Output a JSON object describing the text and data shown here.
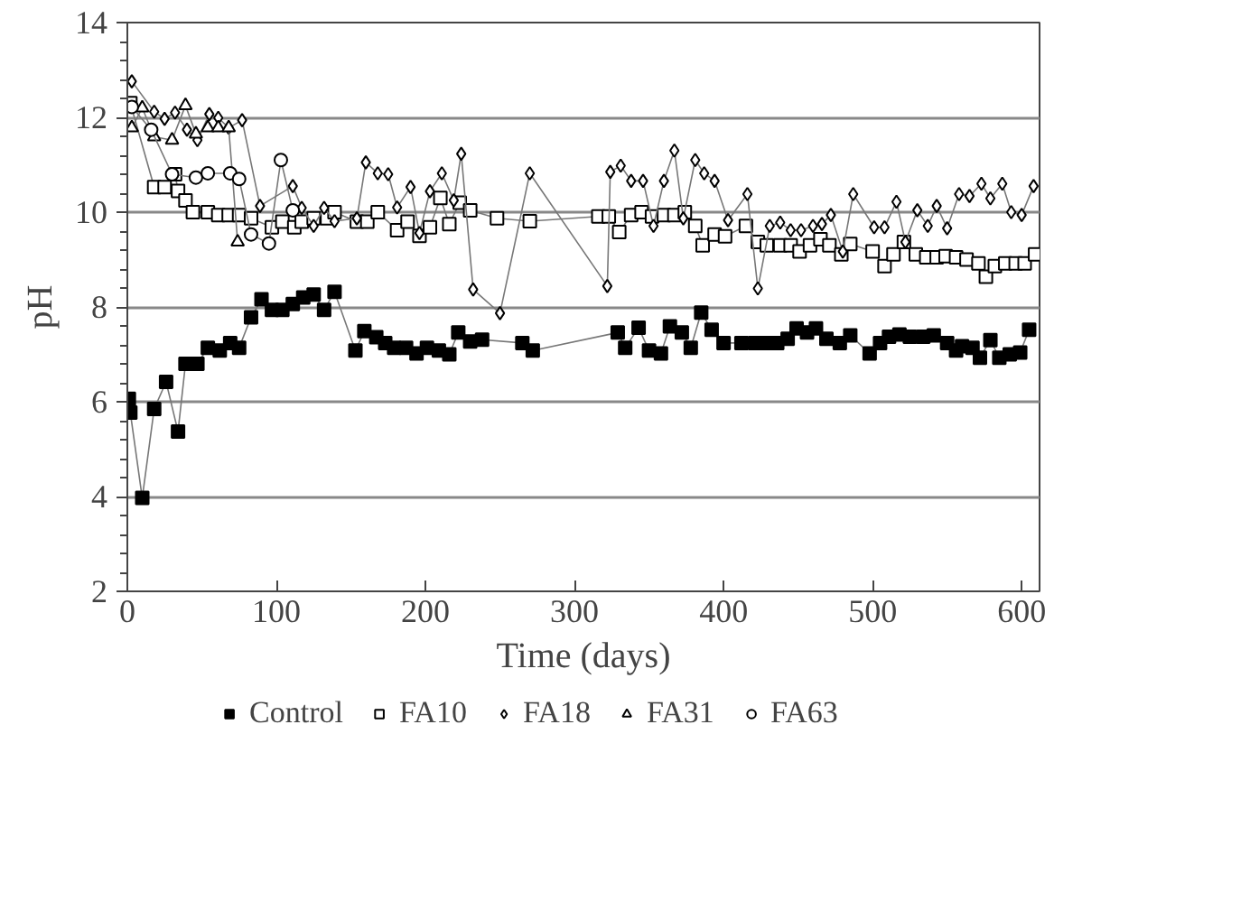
{
  "chart_data": {
    "type": "line",
    "xlabel": "Time (days)",
    "ylabel": "pH",
    "xlim": [
      0,
      612
    ],
    "xticks": [
      0,
      100,
      200,
      300,
      400,
      500,
      600
    ],
    "ylim": [
      2,
      14
    ],
    "yticks": [
      2,
      4,
      6,
      8,
      10,
      12,
      14
    ],
    "grid": "y",
    "legend": "bottom",
    "line_style": "solid",
    "series": [
      {
        "name": "Control",
        "color": "#000000",
        "marker": "square",
        "x": [
          1,
          2,
          10,
          18,
          26,
          34,
          39,
          47,
          54,
          62,
          69,
          75,
          83,
          90,
          97,
          104,
          111,
          118,
          125,
          132,
          139,
          153,
          159,
          167,
          173,
          179,
          187,
          194,
          201,
          209,
          216,
          222,
          230,
          238,
          265,
          272,
          329,
          334,
          343,
          350,
          358,
          364,
          372,
          378,
          385,
          392,
          400,
          412,
          421,
          429,
          436,
          443,
          449,
          456,
          462,
          469,
          478,
          485,
          498,
          505,
          511,
          518,
          525,
          534,
          541,
          550,
          556,
          560,
          567,
          572,
          579,
          585,
          592,
          599,
          605
        ],
        "values": [
          6.06,
          5.77,
          3.97,
          5.85,
          6.42,
          5.37,
          6.8,
          6.8,
          7.14,
          7.08,
          7.24,
          7.14,
          7.78,
          8.16,
          7.94,
          7.94,
          8.06,
          8.2,
          8.26,
          7.94,
          8.32,
          7.08,
          7.49,
          7.36,
          7.24,
          7.14,
          7.14,
          7.02,
          7.14,
          7.08,
          7.0,
          7.46,
          7.27,
          7.31,
          7.24,
          7.08,
          7.46,
          7.14,
          7.56,
          7.08,
          7.02,
          7.59,
          7.46,
          7.14,
          7.88,
          7.52,
          7.24,
          7.24,
          7.24,
          7.24,
          7.24,
          7.33,
          7.55,
          7.46,
          7.55,
          7.33,
          7.24,
          7.4,
          7.02,
          7.24,
          7.37,
          7.42,
          7.37,
          7.37,
          7.4,
          7.24,
          7.08,
          7.17,
          7.14,
          6.93,
          7.3,
          6.93,
          7.0,
          7.04,
          7.52
        ]
      },
      {
        "name": "FA10",
        "color": "#ffffff",
        "marker": "square",
        "x": [
          2,
          18,
          25,
          32,
          34,
          39,
          44,
          54,
          61,
          68,
          75,
          83,
          97,
          104,
          112,
          117,
          125,
          134,
          139,
          154,
          161,
          168,
          181,
          188,
          196,
          203,
          210,
          216,
          223,
          230,
          248,
          270,
          316,
          323,
          330,
          338,
          345,
          352,
          360,
          367,
          374,
          381,
          386,
          394,
          401,
          415,
          423,
          429,
          438,
          445,
          451,
          458,
          465,
          471,
          479,
          485,
          500,
          508,
          514,
          521,
          529,
          536,
          543,
          549,
          556,
          563,
          571,
          576,
          582,
          589,
          596,
          602,
          609
        ],
        "values": [
          12.3,
          10.53,
          10.53,
          10.8,
          10.45,
          10.25,
          10.0,
          10.0,
          9.94,
          9.94,
          9.94,
          9.87,
          9.68,
          9.8,
          9.68,
          9.8,
          9.87,
          9.87,
          10.0,
          9.8,
          9.8,
          10.0,
          9.62,
          9.8,
          9.5,
          9.68,
          10.3,
          9.75,
          10.2,
          10.04,
          9.87,
          9.81,
          9.91,
          9.91,
          9.58,
          9.94,
          10.0,
          9.91,
          9.94,
          9.94,
          10.0,
          9.71,
          9.3,
          9.53,
          9.49,
          9.71,
          9.37,
          9.3,
          9.3,
          9.3,
          9.17,
          9.3,
          9.43,
          9.3,
          9.11,
          9.33,
          9.17,
          8.86,
          9.11,
          9.37,
          9.11,
          9.05,
          9.05,
          9.07,
          9.05,
          9.0,
          8.92,
          8.64,
          8.86,
          8.92,
          8.92,
          8.92,
          9.11
        ]
      },
      {
        "name": "FA18",
        "color": "#ffffff",
        "marker": "diamond",
        "x": [
          3,
          18,
          25,
          32,
          40,
          47,
          55,
          61,
          68,
          77,
          89,
          111,
          117,
          125,
          132,
          139,
          154,
          160,
          168,
          175,
          181,
          190,
          196,
          203,
          211,
          219,
          224,
          232,
          250,
          270,
          322,
          324,
          331,
          338,
          346,
          353,
          360,
          367,
          373,
          381,
          387,
          394,
          403,
          416,
          423,
          431,
          438,
          445,
          452,
          460,
          466,
          472,
          480,
          487,
          501,
          508,
          516,
          522,
          530,
          537,
          543,
          550,
          558,
          565,
          573,
          579,
          587,
          593,
          600,
          608
        ],
        "values": [
          12.76,
          12.12,
          11.97,
          12.1,
          11.74,
          11.52,
          12.07,
          11.99,
          11.78,
          11.94,
          10.13,
          10.55,
          10.09,
          9.71,
          10.09,
          9.81,
          9.87,
          11.05,
          10.82,
          10.8,
          10.1,
          10.53,
          9.56,
          10.44,
          10.82,
          10.25,
          11.23,
          8.37,
          7.87,
          10.82,
          8.44,
          10.85,
          10.98,
          10.66,
          10.66,
          9.71,
          10.66,
          11.3,
          9.87,
          11.1,
          10.82,
          10.66,
          9.83,
          10.38,
          8.39,
          9.71,
          9.78,
          9.62,
          9.62,
          9.71,
          9.75,
          9.94,
          9.17,
          10.38,
          9.68,
          9.68,
          10.22,
          9.37,
          10.04,
          9.71,
          10.13,
          9.66,
          10.38,
          10.34,
          10.6,
          10.29,
          10.6,
          10.0,
          9.94,
          10.55
        ]
      },
      {
        "name": "FA31",
        "color": "#ffffff",
        "marker": "triangle",
        "x": [
          3,
          10,
          18,
          30,
          39,
          46,
          54,
          61,
          68,
          74
        ],
        "values": [
          11.78,
          12.2,
          11.59,
          11.52,
          12.25,
          11.65,
          11.78,
          11.78,
          11.78,
          9.37
        ]
      },
      {
        "name": "FA63",
        "color": "#ffffff",
        "marker": "circle",
        "x": [
          3,
          16,
          30,
          46,
          54,
          69,
          75,
          83,
          95,
          103,
          111
        ],
        "values": [
          12.22,
          11.74,
          10.8,
          10.73,
          10.82,
          10.82,
          10.7,
          9.53,
          9.34,
          11.1,
          10.04
        ]
      }
    ]
  }
}
